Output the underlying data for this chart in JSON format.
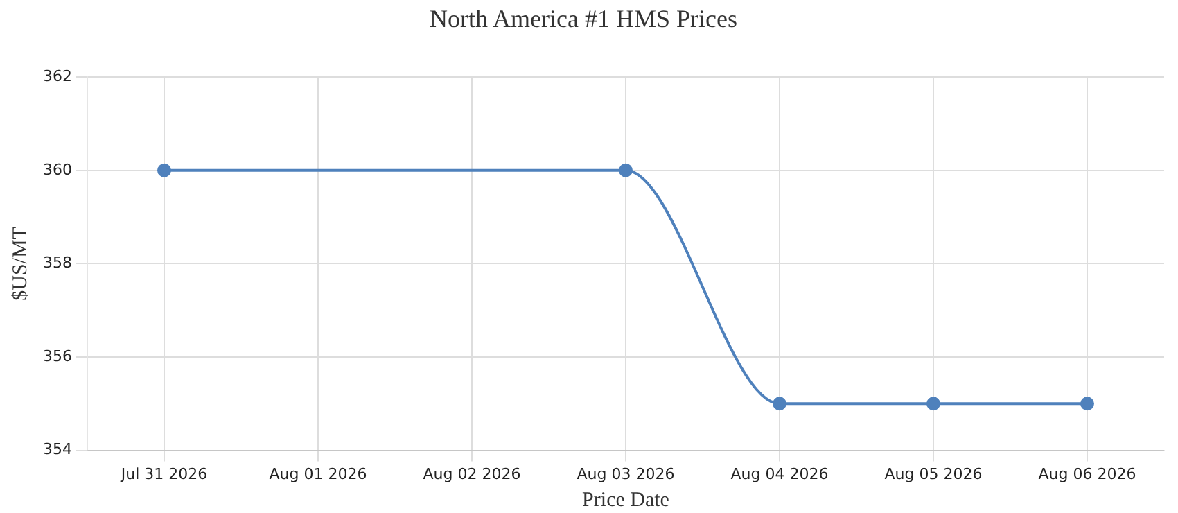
{
  "chart_data": {
    "type": "line",
    "title": "North America #1 HMS Prices",
    "xlabel": "Price Date",
    "ylabel": "$US/MT",
    "x": [
      "2026-07-31",
      "2026-08-03",
      "2026-08-04",
      "2026-08-05",
      "2026-08-06"
    ],
    "series": [
      {
        "color": "#4f81bc",
        "values": [
          360,
          360,
          355,
          355,
          355
        ]
      }
    ],
    "xlim": [
      "2026-07-30T12:00",
      "2026-08-06T12:00"
    ],
    "xticks": [
      {
        "value": "2026-07-31",
        "label": "Jul 31 2026"
      },
      {
        "value": "2026-08-01",
        "label": "Aug 01 2026"
      },
      {
        "value": "2026-08-02",
        "label": "Aug 02 2026"
      },
      {
        "value": "2026-08-03",
        "label": "Aug 03 2026"
      },
      {
        "value": "2026-08-04",
        "label": "Aug 04 2026"
      },
      {
        "value": "2026-08-05",
        "label": "Aug 05 2026"
      },
      {
        "value": "2026-08-06",
        "label": "Aug 06 2026"
      }
    ],
    "ylim": [
      354,
      362
    ],
    "yticks": [
      354,
      356,
      358,
      360,
      362
    ],
    "grid": true,
    "legend": false,
    "marker": "circle",
    "line_style": "solid"
  }
}
